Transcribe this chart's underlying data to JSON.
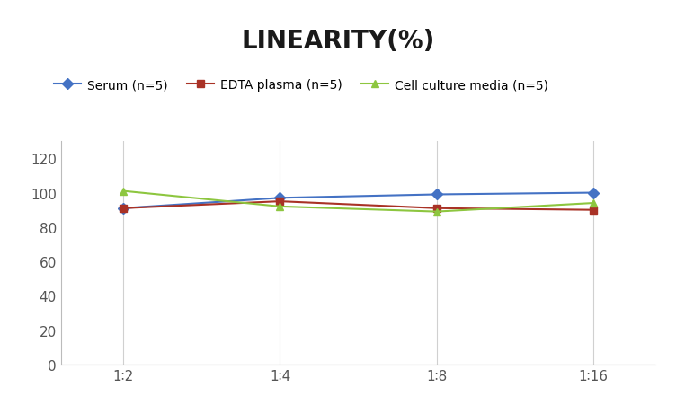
{
  "title": "LINEARITY(%)",
  "x_labels": [
    "1∶2",
    "1∶4",
    "1∶8",
    "1∶16"
  ],
  "x_positions": [
    0,
    1,
    2,
    3
  ],
  "series": [
    {
      "label": "Serum (n=5)",
      "values": [
        91,
        97,
        99,
        100
      ],
      "color": "#4472C4",
      "marker": "D",
      "linewidth": 1.5
    },
    {
      "label": "EDTA plasma (n=5)",
      "values": [
        91,
        95,
        91,
        90
      ],
      "color": "#A93226",
      "marker": "s",
      "linewidth": 1.5
    },
    {
      "label": "Cell culture media (n=5)",
      "values": [
        101,
        92,
        89,
        94
      ],
      "color": "#8DC63F",
      "marker": "^",
      "linewidth": 1.5
    }
  ],
  "ylim": [
    0,
    130
  ],
  "yticks": [
    0,
    20,
    40,
    60,
    80,
    100,
    120
  ],
  "grid_color": "#D0D0D0",
  "background_color": "#FFFFFF",
  "title_fontsize": 20,
  "legend_fontsize": 10,
  "tick_fontsize": 11,
  "title_fontweight": "bold"
}
